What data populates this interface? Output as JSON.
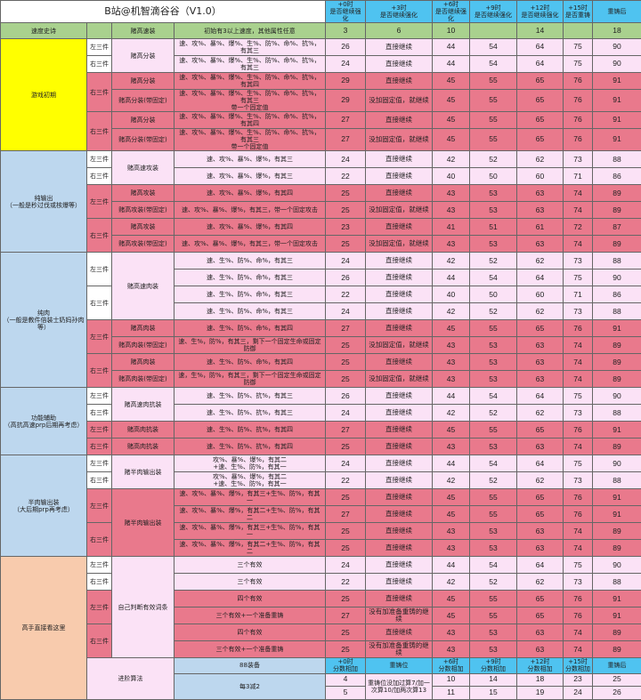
{
  "title": "B站@机智滴谷谷（V1.0）",
  "headers": [
    "+0时\n是否继续强化",
    "+3时\n是否继续强化",
    "+6时\n是否继续强化",
    "+9时\n是否继续强化",
    "+12时\n是否继续强化",
    "+15时\n是否重铸",
    "重铸后"
  ],
  "colors": {
    "header": "#4fc3f0",
    "title": "#ffffff",
    "speed": "#a9d18e",
    "light": "#fbe2f6",
    "highlight": "#e9798c",
    "gear": "#bdd7ee"
  },
  "speed_row": {
    "category": "速度史诗",
    "set": "赌高速装",
    "condition": "初始有3以上速度，其他属性任意",
    "values": [
      3,
      6,
      10,
      null,
      14,
      null,
      18
    ]
  },
  "sections": [
    {
      "category": "游戏初期",
      "color": "#ffff00",
      "rows": [
        {
          "side": "左三件",
          "set": "赌高分装",
          "condition": "速、攻%、暴%、爆%、生%、防%、命%、抗%，有其三",
          "plus0": 26,
          "action": "直接继续",
          "scores": [
            44,
            54,
            64,
            75,
            90
          ]
        },
        {
          "side": "右三件",
          "condition": "速、攻%、暴%、爆%、生%、防%、命%、抗%，有其三",
          "plus0": 24,
          "action": "直接继续",
          "scores": [
            44,
            54,
            64,
            75,
            90
          ]
        },
        {
          "side": "右三件",
          "set": "赌高分装",
          "highlight": true,
          "condition": "速、攻%、暴%、爆%、生%、防%、命%、抗%，有其四",
          "plus0": 29,
          "action": "直接继续",
          "scores": [
            45,
            55,
            65,
            76,
            91
          ]
        },
        {
          "set": "赌高分装(带固定)",
          "highlight": true,
          "condition": "速、攻%、暴%、爆%、生%、防%、命%、抗%，有其三\n带一个固定值",
          "plus0": 29,
          "action": "没加固定值，就继续",
          "scores": [
            45,
            55,
            65,
            76,
            91
          ]
        },
        {
          "side": "右三件",
          "set": "赌高分装",
          "highlight": true,
          "condition": "速、攻%、暴%、爆%、生%、防%、命%、抗%，有其四",
          "plus0": 27,
          "action": "直接继续",
          "scores": [
            45,
            55,
            65,
            76,
            91
          ]
        },
        {
          "set": "赌高分装(带固定)",
          "highlight": true,
          "condition": "速、攻%、暴%、爆%、生%、防%、命%、抗%，有其三\n带一个固定值",
          "plus0": 27,
          "action": "没加固定值，就继续",
          "scores": [
            45,
            55,
            65,
            76,
            91
          ]
        }
      ]
    },
    {
      "category": "纯输出\n（一般是秒过伐或核爆等）",
      "color": "#bdd7ee",
      "rows": [
        {
          "side": "左三件",
          "set": "赌高速攻装",
          "condition": "速、攻%、暴%、爆%，有其三",
          "plus0": 24,
          "action": "直接继续",
          "scores": [
            42,
            52,
            62,
            73,
            88
          ]
        },
        {
          "side": "右三件",
          "condition": "速、攻%、暴%、爆%，有其三",
          "plus0": 22,
          "action": "直接继续",
          "scores": [
            40,
            50,
            60,
            71,
            86
          ]
        },
        {
          "side": "左三件",
          "set": "赌高攻装",
          "highlight": true,
          "condition": "速、攻%、暴%、爆%，有其四",
          "plus0": 25,
          "action": "直接继续",
          "scores": [
            43,
            53,
            63,
            74,
            89
          ]
        },
        {
          "set": "赌高攻装(带固定)",
          "highlight": true,
          "condition": "速、攻%、暴%、爆%，有其三，带一个固定攻击",
          "plus0": 25,
          "action": "没加固定值，就继续",
          "scores": [
            43,
            53,
            63,
            74,
            89
          ]
        },
        {
          "side": "右三件",
          "set": "赌高攻装",
          "highlight": true,
          "condition": "速、攻%、暴%、爆%，有其四",
          "plus0": 23,
          "action": "直接继续",
          "scores": [
            41,
            51,
            61,
            72,
            87
          ]
        },
        {
          "set": "赌高攻装(带固定)",
          "highlight": true,
          "condition": "速、攻%、暴%、爆%，有其三，带一个固定攻击",
          "plus0": 25,
          "action": "没加固定值，就继续",
          "scores": [
            43,
            53,
            63,
            74,
            89
          ]
        }
      ]
    },
    {
      "category": "纯肉\n（一般是教件倍装士奶妈孙肉等）",
      "color": "#bdd7ee",
      "rows": [
        {
          "side": "左三件",
          "set": "赌高速肉装",
          "condition": "速、生%、防%、命%，有其三",
          "plus0": 24,
          "action": "直接继续",
          "scores": [
            42,
            52,
            62,
            73,
            88
          ]
        },
        {
          "condition": "速、生%、防%、命%，有其三",
          "plus0": 26,
          "action": "直接继续",
          "scores": [
            44,
            54,
            64,
            75,
            90
          ]
        },
        {
          "side": "右三件",
          "condition": "速、生%、防%、命%，有其三",
          "plus0": 22,
          "action": "直接继续",
          "scores": [
            40,
            50,
            60,
            71,
            86
          ]
        },
        {
          "condition": "速、生%、防%、命%，有其三",
          "plus0": 24,
          "action": "直接继续",
          "scores": [
            42,
            52,
            62,
            73,
            88
          ]
        },
        {
          "side": "左三件",
          "set": "赌高肉装",
          "highlight": true,
          "condition": "速、生%、防%、命%，有其四",
          "plus0": 27,
          "action": "直接继续",
          "scores": [
            45,
            55,
            65,
            76,
            91
          ]
        },
        {
          "set": "赌高肉装(带固定)",
          "highlight": true,
          "condition": "速、生%，防%，有其三，剩下一个固定生命或固定防御",
          "plus0": 25,
          "action": "没加固定值，就继续",
          "scores": [
            43,
            53,
            63,
            74,
            89
          ]
        },
        {
          "side": "右三件",
          "set": "赌高肉装",
          "highlight": true,
          "condition": "速、生%、防%、命%，有其四",
          "plus0": 25,
          "action": "直接继续",
          "scores": [
            43,
            53,
            63,
            74,
            89
          ]
        },
        {
          "set": "赌高肉装(带固定)",
          "highlight": true,
          "condition": "速，生%，防%，有其三，剩下一个固定生命或固定防御",
          "plus0": 25,
          "action": "没加固定值，就继续",
          "scores": [
            43,
            53,
            63,
            74,
            89
          ]
        }
      ]
    },
    {
      "category": "功能辅助\n（高抗高速prp后期再考虑）",
      "color": "#bdd7ee",
      "rows": [
        {
          "side": "左三件",
          "set": "赌高速肉抗装",
          "condition": "速、生%、防%、抗%，有其三",
          "plus0": 26,
          "action": "直接继续",
          "scores": [
            44,
            54,
            64,
            75,
            90
          ]
        },
        {
          "side": "右三件",
          "condition": "速、生%、防%、抗%，有其三",
          "plus0": 24,
          "action": "直接继续",
          "scores": [
            42,
            52,
            62,
            73,
            88
          ]
        },
        {
          "side": "左三件",
          "set": "赌高肉抗装",
          "highlight": true,
          "condition": "速、生%、防%、抗%，有其四",
          "plus0": 27,
          "action": "直接继续",
          "scores": [
            45,
            55,
            65,
            76,
            91
          ]
        },
        {
          "side": "右三件",
          "set": "赌高肉抗装",
          "highlight": true,
          "condition": "速、生%、防%、抗%，有其四",
          "plus0": 25,
          "action": "直接继续",
          "scores": [
            43,
            53,
            63,
            74,
            89
          ]
        }
      ]
    },
    {
      "category": "半肉输出装\n（大后期prp再考虑）",
      "color": "#bdd7ee",
      "rows": [
        {
          "side": "左三件",
          "set": "赌半肉输出装",
          "condition": "攻%、暴%、爆%，有其二\n+速、生%、防%，有其一",
          "plus0": 24,
          "action": "直接继续",
          "scores": [
            44,
            54,
            64,
            75,
            90
          ]
        },
        {
          "side": "右三件",
          "condition": "攻%、暴%、爆%，有其二\n+速、生%、防%，有其一",
          "plus0": 22,
          "action": "直接继续",
          "scores": [
            42,
            52,
            62,
            73,
            88
          ]
        },
        {
          "side": "左三件",
          "set": "赌半肉输出装",
          "highlight": true,
          "condition": "速、攻%、暴%、爆%，有其三+生%、防%，有其一",
          "plus0": 25,
          "action": "直接继续",
          "scores": [
            45,
            55,
            65,
            76,
            91
          ]
        },
        {
          "highlight": true,
          "condition": "速、攻%、暴%、爆%，有其二+生%、防%，有其二",
          "plus0": 27,
          "action": "直接继续",
          "scores": [
            45,
            55,
            65,
            76,
            91
          ]
        },
        {
          "side": "右三件",
          "highlight": true,
          "condition": "速、攻%、暴%、爆%，有其三+生%、防%，有其一",
          "plus0": 25,
          "action": "直接继续",
          "scores": [
            43,
            53,
            63,
            74,
            89
          ]
        },
        {
          "highlight": true,
          "condition": "速、攻%、暴%、爆%，有其二+生%、防%，有其二",
          "plus0": 25,
          "action": "直接继续",
          "scores": [
            43,
            53,
            63,
            74,
            89
          ]
        }
      ]
    },
    {
      "category": "高手直接看这里",
      "color": "#f8cbad",
      "rows": [
        {
          "side": "左三件",
          "set": "自己判断有效词条",
          "condition": "三个有效",
          "plus0": 24,
          "action": "直接继续",
          "scores": [
            44,
            54,
            64,
            75,
            90
          ]
        },
        {
          "side": "右三件",
          "condition": "三个有效",
          "plus0": 22,
          "action": "直接继续",
          "scores": [
            42,
            52,
            62,
            73,
            88
          ]
        },
        {
          "side": "左三件",
          "highlight": true,
          "condition": "四个有效",
          "plus0": 25,
          "action": "直接继续",
          "scores": [
            45,
            55,
            65,
            76,
            91
          ]
        },
        {
          "highlight": true,
          "condition": "三个有效+一个准备重铸",
          "plus0": 27,
          "action": "没有加准备重铸的继续",
          "scores": [
            45,
            55,
            65,
            76,
            91
          ]
        },
        {
          "side": "右三件",
          "highlight": true,
          "condition": "四个有效",
          "plus0": 25,
          "action": "直接继续",
          "scores": [
            43,
            53,
            63,
            74,
            89
          ]
        },
        {
          "highlight": true,
          "condition": "三个有效+一个准备重铸",
          "plus0": 25,
          "action": "没有加准备重铸的继续",
          "scores": [
            43,
            53,
            63,
            74,
            89
          ]
        }
      ]
    }
  ],
  "advanced": {
    "label": "进阶算法",
    "gear": "88装备",
    "headers": [
      "+0时\n分数相加",
      "重铸位",
      "+6时\n分数相加",
      "+9时\n分数相加",
      "+12时\n分数相加",
      "+15时\n分数相加",
      "重铸后"
    ],
    "rule": "每3减2",
    "recast_note": "重铸位没加过算7/加一次算10/加两次算13",
    "rows": [
      {
        "plus0": 4,
        "scores": [
          10,
          14,
          18,
          23,
          25
        ]
      },
      {
        "plus0": 5,
        "scores": [
          11,
          15,
          19,
          24,
          26
        ]
      }
    ]
  }
}
